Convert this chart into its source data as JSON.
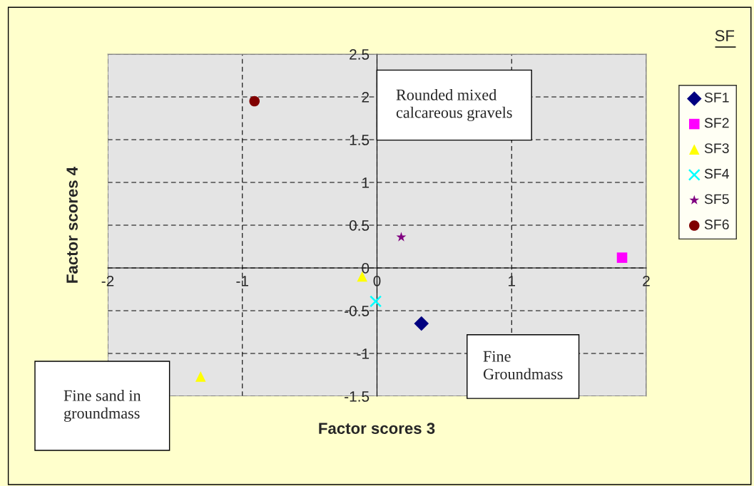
{
  "chart_data": {
    "type": "scatter",
    "title": "SF",
    "xlabel": "Factor scores 3",
    "ylabel": "Factor scores 4",
    "xlim": [
      -2,
      2
    ],
    "ylim": [
      -1.5,
      2.5
    ],
    "xticks": [
      -2,
      -1,
      0,
      1,
      2
    ],
    "yticks": [
      -1.5,
      -1,
      -0.5,
      0,
      0.5,
      1,
      1.5,
      2,
      2.5
    ],
    "grid": true,
    "legend": "right",
    "series": [
      {
        "name": "SF1",
        "color": "#000080",
        "marker": "diamond",
        "x": [
          0.33
        ],
        "values": [
          -0.65
        ]
      },
      {
        "name": "SF2",
        "color": "#ff00ff",
        "marker": "square",
        "x": [
          1.82
        ],
        "values": [
          0.12
        ]
      },
      {
        "name": "SF3",
        "color": "#ffff00",
        "marker": "triangle",
        "x": [
          -0.11,
          -1.31
        ],
        "values": [
          -0.1,
          -1.27
        ]
      },
      {
        "name": "SF4",
        "color": "#00ffff",
        "marker": "cross",
        "x": [
          -0.01
        ],
        "values": [
          -0.39
        ]
      },
      {
        "name": "SF5",
        "color": "#800080",
        "marker": "star",
        "x": [
          0.18
        ],
        "values": [
          0.36
        ]
      },
      {
        "name": "SF6",
        "color": "#800000",
        "marker": "circle",
        "x": [
          -0.91
        ],
        "values": [
          1.95
        ]
      }
    ],
    "annotations": [
      "Rounded mixed\ncalcareous gravels",
      "Fine\nGroundmass",
      "Fine sand in\ngroundmass"
    ]
  }
}
